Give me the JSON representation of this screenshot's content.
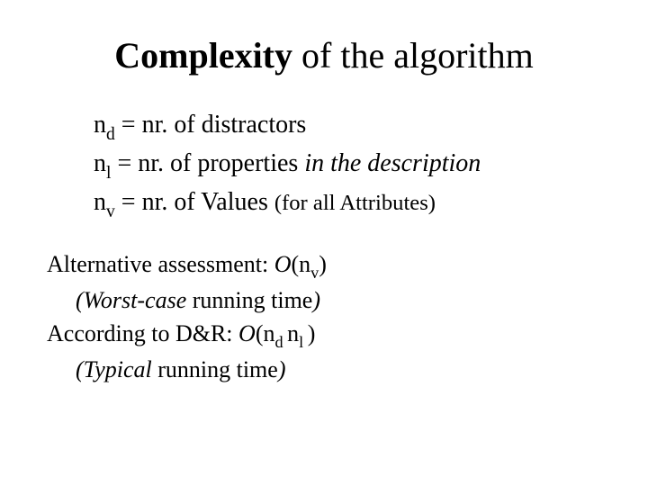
{
  "title": {
    "bold": "Complexity",
    "rest": " of the algorithm"
  },
  "defs": {
    "d1": {
      "var": "n",
      "sub": "d",
      "eq": "  =  nr. of distractors"
    },
    "d2": {
      "var": "n",
      "sub": "l",
      "eq_a": "  =  nr. of properties ",
      "eq_ital": "in the description"
    },
    "d3": {
      "var": "n",
      "sub": "v",
      "eq_a": "  =  nr. of Values ",
      "eq_small": "(for all Attributes)"
    }
  },
  "body": {
    "l1a": "Alternative assessment:  ",
    "l1_O": "O",
    "l1_open": "(n",
    "l1_sub": "v",
    "l1_close": ")",
    "l2a": "(Worst-case ",
    "l2b": "running time",
    "l2c": ")",
    "l3a": "According to D&R:  ",
    "l3_O": "O",
    "l3_open": "(n",
    "l3_sub1": "d ",
    "l3_mid": "n",
    "l3_sub2": "l ",
    "l3_close": ")",
    "l4a": "(Typical ",
    "l4b": "running time",
    "l4c": ")"
  },
  "colors": {
    "text": "#000000",
    "bg": "#ffffff"
  }
}
